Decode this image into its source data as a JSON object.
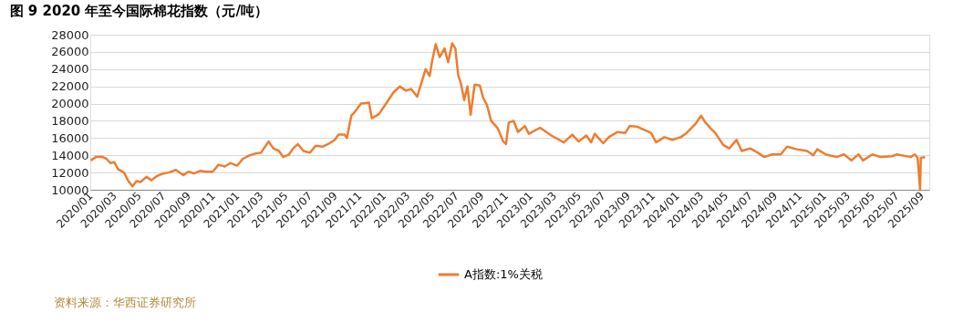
{
  "chart_data": {
    "type": "line",
    "title": "图 9 2020 年至今国际棉花指数（元/吨）",
    "annotations": [
      "资料来源：华西证券研究所"
    ],
    "x": [
      "2020-01-02",
      "2020-01-15",
      "2020-02-01",
      "2020-02-10",
      "2020-02-20",
      "2020-03-01",
      "2020-03-10",
      "2020-03-25",
      "2020-04-05",
      "2020-04-15",
      "2020-04-25",
      "2020-05-05",
      "2020-05-20",
      "2020-06-01",
      "2020-06-15",
      "2020-07-01",
      "2020-07-15",
      "2020-08-01",
      "2020-08-20",
      "2020-09-01",
      "2020-09-15",
      "2020-10-01",
      "2020-10-15",
      "2020-11-01",
      "2020-11-15",
      "2020-12-01",
      "2020-12-15",
      "2021-01-01",
      "2021-01-15",
      "2021-02-01",
      "2021-02-15",
      "2021-03-01",
      "2021-03-20",
      "2021-04-01",
      "2021-04-15",
      "2021-04-25",
      "2021-05-10",
      "2021-05-20",
      "2021-06-01",
      "2021-06-15",
      "2021-07-01",
      "2021-07-15",
      "2021-08-01",
      "2021-08-15",
      "2021-09-01",
      "2021-09-10",
      "2021-09-25",
      "2021-10-01",
      "2021-10-12",
      "2021-10-20",
      "2021-11-05",
      "2021-11-25",
      "2021-12-02",
      "2021-12-20",
      "2022-01-05",
      "2022-01-25",
      "2022-02-10",
      "2022-02-25",
      "2022-03-10",
      "2022-03-25",
      "2022-04-05",
      "2022-04-15",
      "2022-04-25",
      "2022-05-01",
      "2022-05-10",
      "2022-05-20",
      "2022-06-01",
      "2022-06-10",
      "2022-06-20",
      "2022-06-28",
      "2022-07-05",
      "2022-07-12",
      "2022-07-20",
      "2022-07-28",
      "2022-08-05",
      "2022-08-15",
      "2022-08-28",
      "2022-09-05",
      "2022-09-15",
      "2022-09-25",
      "2022-10-12",
      "2022-10-25",
      "2022-11-01",
      "2022-11-08",
      "2022-11-20",
      "2022-12-01",
      "2022-12-18",
      "2022-12-28",
      "2023-01-25",
      "2023-02-22",
      "2023-03-25",
      "2023-04-15",
      "2023-05-01",
      "2023-05-20",
      "2023-06-01",
      "2023-06-10",
      "2023-07-01",
      "2023-07-15",
      "2023-08-05",
      "2023-08-25",
      "2023-09-05",
      "2023-09-25",
      "2023-10-28",
      "2023-11-10",
      "2023-11-30",
      "2023-12-20",
      "2024-01-10",
      "2024-01-25",
      "2024-02-15",
      "2024-03-01",
      "2024-03-10",
      "2024-03-25",
      "2024-04-05",
      "2024-04-25",
      "2024-05-10",
      "2024-05-28",
      "2024-06-10",
      "2024-07-01",
      "2024-07-20",
      "2024-08-05",
      "2024-08-25",
      "2024-09-15",
      "2024-10-01",
      "2024-10-25",
      "2024-11-20",
      "2024-12-05",
      "2024-12-15",
      "2025-01-05",
      "2025-02-01",
      "2025-02-20",
      "2025-03-10",
      "2025-03-28",
      "2025-04-08",
      "2025-05-01",
      "2025-05-22",
      "2025-06-20",
      "2025-07-01",
      "2025-08-05",
      "2025-08-15",
      "2025-08-22",
      "2025-08-28",
      "2025-08-30",
      "2025-09-10"
    ],
    "series": [
      {
        "name": "A指数:1%关税",
        "color": "#ed7d31",
        "values": [
          13400,
          13800,
          13800,
          13600,
          13100,
          13200,
          12400,
          12000,
          11000,
          10400,
          11000,
          10900,
          11500,
          11100,
          11600,
          11900,
          12000,
          12300,
          11700,
          12100,
          11900,
          12200,
          12100,
          12100,
          12900,
          12700,
          13100,
          12800,
          13600,
          14000,
          14200,
          14300,
          15600,
          14800,
          14500,
          13800,
          14100,
          14800,
          15300,
          14500,
          14300,
          15100,
          15000,
          15300,
          15800,
          16400,
          16400,
          16000,
          18600,
          19000,
          20000,
          20100,
          18300,
          18800,
          19900,
          21300,
          22000,
          21500,
          21700,
          20800,
          22500,
          24000,
          23200,
          24900,
          26900,
          25400,
          26400,
          24800,
          27000,
          26400,
          23300,
          22300,
          20400,
          22000,
          18700,
          22200,
          22100,
          20700,
          19800,
          18000,
          17100,
          15600,
          15300,
          17800,
          18000,
          16700,
          17400,
          16500,
          17200,
          16300,
          15500,
          16400,
          15600,
          16300,
          15500,
          16500,
          15400,
          16100,
          16700,
          16600,
          17400,
          17300,
          16600,
          15500,
          16100,
          15800,
          16100,
          16600,
          17600,
          18600,
          17900,
          17100,
          16600,
          15200,
          14800,
          15800,
          14500,
          14800,
          14300,
          13800,
          14100,
          14100,
          15000,
          14700,
          14500,
          14000,
          14700,
          14100,
          13800,
          14100,
          13400,
          14100,
          13400,
          14100,
          13800,
          13900,
          14100,
          13800,
          14100,
          13700,
          10000,
          13700,
          13800
        ]
      }
    ],
    "xlim": [
      "2020-01-01",
      "2025-09-20"
    ],
    "xticks": [
      {
        "value": "2020-01-01",
        "label": "2020/01"
      },
      {
        "value": "2020-03-01",
        "label": "2020/03"
      },
      {
        "value": "2020-05-01",
        "label": "2020/05"
      },
      {
        "value": "2020-07-01",
        "label": "2020/07"
      },
      {
        "value": "2020-09-01",
        "label": "2020/09"
      },
      {
        "value": "2020-11-01",
        "label": "2020/11"
      },
      {
        "value": "2021-01-01",
        "label": "2021/01"
      },
      {
        "value": "2021-03-01",
        "label": "2021/03"
      },
      {
        "value": "2021-05-01",
        "label": "2021/05"
      },
      {
        "value": "2021-07-01",
        "label": "2021/07"
      },
      {
        "value": "2021-09-01",
        "label": "2021/09"
      },
      {
        "value": "2021-11-01",
        "label": "2021/11"
      },
      {
        "value": "2022-01-01",
        "label": "2022/01"
      },
      {
        "value": "2022-03-01",
        "label": "2022/03"
      },
      {
        "value": "2022-05-01",
        "label": "2022/05"
      },
      {
        "value": "2022-07-01",
        "label": "2022/07"
      },
      {
        "value": "2022-09-01",
        "label": "2022/09"
      },
      {
        "value": "2022-11-01",
        "label": "2022/11"
      },
      {
        "value": "2023-01-01",
        "label": "2023/01"
      },
      {
        "value": "2023-03-01",
        "label": "2023/03"
      },
      {
        "value": "2023-05-01",
        "label": "2023/05"
      },
      {
        "value": "2023-07-01",
        "label": "2023/07"
      },
      {
        "value": "2023-09-01",
        "label": "2023/09"
      },
      {
        "value": "2023-11-01",
        "label": "2023/11"
      },
      {
        "value": "2024-01-01",
        "label": "2024/01"
      },
      {
        "value": "2024-03-01",
        "label": "2024/03"
      },
      {
        "value": "2024-05-01",
        "label": "2024/05"
      },
      {
        "value": "2024-07-01",
        "label": "2024/07"
      },
      {
        "value": "2024-09-01",
        "label": "2024/09"
      },
      {
        "value": "2024-11-01",
        "label": "2024/11"
      },
      {
        "value": "2025-01-01",
        "label": "2025/01"
      },
      {
        "value": "2025-03-01",
        "label": "2025/03"
      },
      {
        "value": "2025-05-01",
        "label": "2025/05"
      },
      {
        "value": "2025-07-01",
        "label": "2025/07"
      },
      {
        "value": "2025-09-01",
        "label": "2025/09"
      }
    ],
    "ylim": [
      10000,
      28000
    ],
    "yticks": [
      10000,
      12000,
      14000,
      16000,
      18000,
      20000,
      22000,
      24000,
      26000,
      28000
    ],
    "grid": "y",
    "legend": "bottom",
    "marker": "none",
    "line_style": "solid"
  }
}
